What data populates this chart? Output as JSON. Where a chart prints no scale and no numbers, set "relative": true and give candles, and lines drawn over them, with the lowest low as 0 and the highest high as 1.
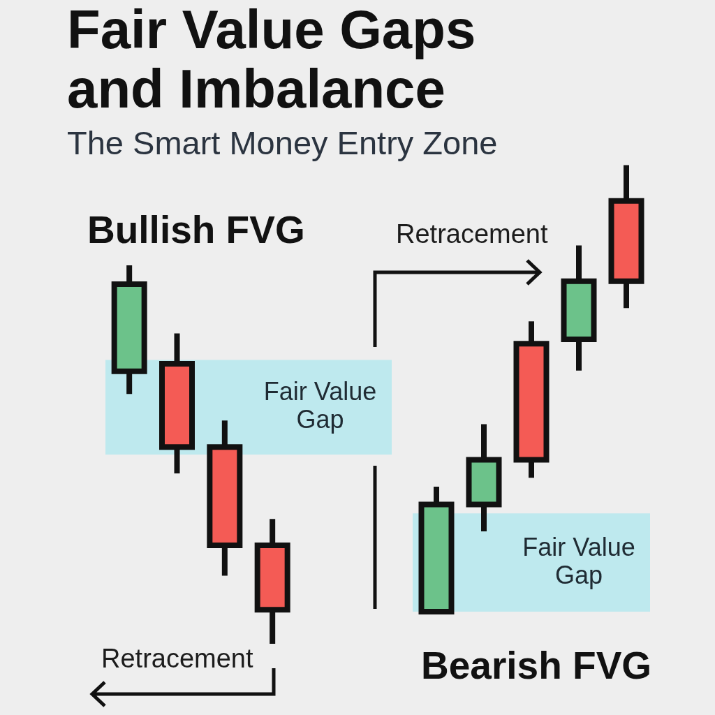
{
  "chart_data": [
    {
      "type": "other",
      "title": "Fair Value Gaps and Imbalance",
      "subtitle": "The Smart Money Entry Zone"
    },
    {
      "type": "candlestick",
      "title": "Bullish FVG",
      "categories": [
        null,
        null,
        null,
        null,
        null,
        null
      ],
      "ohlc": [
        [
          0.72,
          1,
          0.66,
          0.95
        ],
        [
          0.74,
          0.82,
          0.45,
          0.52
        ],
        [
          0.52,
          0.59,
          0.18,
          0.26
        ],
        [
          0.26,
          0.33,
          0,
          0.09
        ],
        null,
        null
      ],
      "colors": [
        "#6cc28a",
        "#f45b55",
        "#f45b55",
        "#f45b55",
        null,
        null
      ],
      "relative": true,
      "bands": [
        {
          "axis": "y",
          "from": 0.5,
          "to": 0.75,
          "label": "Fair Value Gap",
          "color": "#bee9ee"
        }
      ],
      "annotations": [
        "Retracement"
      ]
    },
    {
      "type": "candlestick",
      "title": "Bearish FVG",
      "categories": [
        null,
        null,
        null,
        null,
        null
      ],
      "ohlc": [
        [
          0,
          0.28,
          0,
          0.24
        ],
        [
          0.24,
          0.42,
          0.18,
          0.34
        ],
        [
          0.6,
          0.65,
          0.3,
          0.34
        ],
        [
          0.61,
          0.82,
          0.54,
          0.74
        ],
        [
          0.92,
          1,
          0.68,
          0.74
        ]
      ],
      "colors": [
        "#6cc28a",
        "#6cc28a",
        "#f45b55",
        "#6cc28a",
        "#f45b55"
      ],
      "relative": true,
      "bands": [
        {
          "axis": "y",
          "from": 0,
          "to": 0.22,
          "label": "Fair Value Gap",
          "color": "#bee9ee"
        }
      ],
      "annotations": [
        "Retracement"
      ]
    }
  ]
}
